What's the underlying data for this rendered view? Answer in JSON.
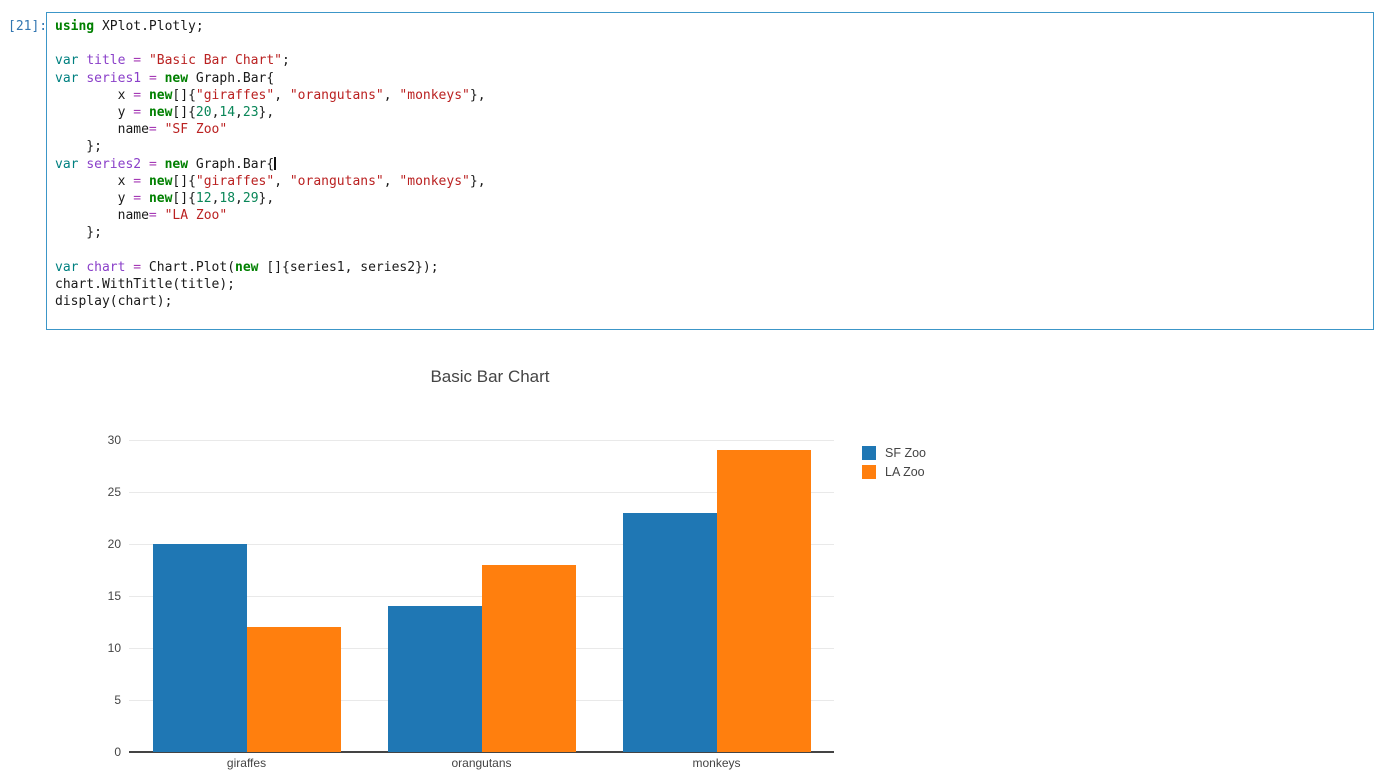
{
  "notebook": {
    "execution_count": "[21]:",
    "cell_type": "code",
    "language": "csharp",
    "code_lines": [
      [
        [
          "k",
          "using"
        ],
        [
          "p",
          " XPlot.Plotly;"
        ]
      ],
      [],
      [
        [
          "v",
          "var"
        ],
        [
          "p",
          " "
        ],
        [
          "i",
          "title"
        ],
        [
          "p",
          " "
        ],
        [
          "o",
          "="
        ],
        [
          "p",
          " "
        ],
        [
          "s",
          "\"Basic Bar Chart\""
        ],
        [
          "p",
          ";"
        ]
      ],
      [
        [
          "v",
          "var"
        ],
        [
          "p",
          " "
        ],
        [
          "i",
          "series1"
        ],
        [
          "p",
          " "
        ],
        [
          "o",
          "="
        ],
        [
          "p",
          " "
        ],
        [
          "k",
          "new"
        ],
        [
          "p",
          " Graph.Bar{"
        ]
      ],
      [
        [
          "p",
          "        x "
        ],
        [
          "o",
          "="
        ],
        [
          "p",
          " "
        ],
        [
          "k",
          "new"
        ],
        [
          "p",
          "[]{"
        ],
        [
          "s",
          "\"giraffes\""
        ],
        [
          "p",
          ", "
        ],
        [
          "s",
          "\"orangutans\""
        ],
        [
          "p",
          ", "
        ],
        [
          "s",
          "\"monkeys\""
        ],
        [
          "p",
          "},"
        ]
      ],
      [
        [
          "p",
          "        y "
        ],
        [
          "o",
          "="
        ],
        [
          "p",
          " "
        ],
        [
          "k",
          "new"
        ],
        [
          "p",
          "[]{"
        ],
        [
          "n",
          "20"
        ],
        [
          "p",
          ","
        ],
        [
          "n",
          "14"
        ],
        [
          "p",
          ","
        ],
        [
          "n",
          "23"
        ],
        [
          "p",
          "},"
        ]
      ],
      [
        [
          "p",
          "        name"
        ],
        [
          "o",
          "="
        ],
        [
          "p",
          " "
        ],
        [
          "s",
          "\"SF Zoo\""
        ]
      ],
      [
        [
          "p",
          "    };"
        ]
      ],
      [
        [
          "v",
          "var"
        ],
        [
          "p",
          " "
        ],
        [
          "i",
          "series2"
        ],
        [
          "p",
          " "
        ],
        [
          "o",
          "="
        ],
        [
          "p",
          " "
        ],
        [
          "k",
          "new"
        ],
        [
          "p",
          " Graph.Bar{"
        ],
        [
          "c",
          ""
        ]
      ],
      [
        [
          "p",
          "        x "
        ],
        [
          "o",
          "="
        ],
        [
          "p",
          " "
        ],
        [
          "k",
          "new"
        ],
        [
          "p",
          "[]{"
        ],
        [
          "s",
          "\"giraffes\""
        ],
        [
          "p",
          ", "
        ],
        [
          "s",
          "\"orangutans\""
        ],
        [
          "p",
          ", "
        ],
        [
          "s",
          "\"monkeys\""
        ],
        [
          "p",
          "},"
        ]
      ],
      [
        [
          "p",
          "        y "
        ],
        [
          "o",
          "="
        ],
        [
          "p",
          " "
        ],
        [
          "k",
          "new"
        ],
        [
          "p",
          "[]{"
        ],
        [
          "n",
          "12"
        ],
        [
          "p",
          ","
        ],
        [
          "n",
          "18"
        ],
        [
          "p",
          ","
        ],
        [
          "n",
          "29"
        ],
        [
          "p",
          "},"
        ]
      ],
      [
        [
          "p",
          "        name"
        ],
        [
          "o",
          "="
        ],
        [
          "p",
          " "
        ],
        [
          "s",
          "\"LA Zoo\""
        ]
      ],
      [
        [
          "p",
          "    };"
        ]
      ],
      [],
      [
        [
          "v",
          "var"
        ],
        [
          "p",
          " "
        ],
        [
          "i",
          "chart"
        ],
        [
          "p",
          " "
        ],
        [
          "o",
          "="
        ],
        [
          "p",
          " Chart.Plot("
        ],
        [
          "k",
          "new"
        ],
        [
          "p",
          " []{series1, series2});"
        ]
      ],
      [
        [
          "p",
          "chart.WithTitle(title);"
        ]
      ],
      [
        [
          "p",
          "display(chart);"
        ]
      ]
    ]
  },
  "colors": {
    "cell_border": "#3c96c8",
    "prompt": "#3276b1",
    "axis_text": "#444444",
    "grid": "#e9e9e9",
    "axis_line": "#444444",
    "syntax": {
      "k": "#008000",
      "v": "#008080",
      "i": "#8a3fc9",
      "o": "#a53ab5",
      "s": "#ba2121",
      "n": "#098658",
      "p": "#1a1a1a"
    }
  },
  "chart_data": {
    "type": "bar",
    "bar_mode": "group",
    "title": "Basic Bar Chart",
    "categories": [
      "giraffes",
      "orangutans",
      "monkeys"
    ],
    "series": [
      {
        "name": "SF Zoo",
        "color": "#1f77b4",
        "values": [
          20,
          14,
          23
        ]
      },
      {
        "name": "LA Zoo",
        "color": "#ff7f0e",
        "values": [
          12,
          18,
          29
        ]
      }
    ],
    "xlabel": "",
    "ylabel": "",
    "ylim": [
      0,
      30
    ],
    "yticks": [
      0,
      5,
      10,
      15,
      20,
      25,
      30
    ],
    "grid": true,
    "legend_position": "right"
  }
}
